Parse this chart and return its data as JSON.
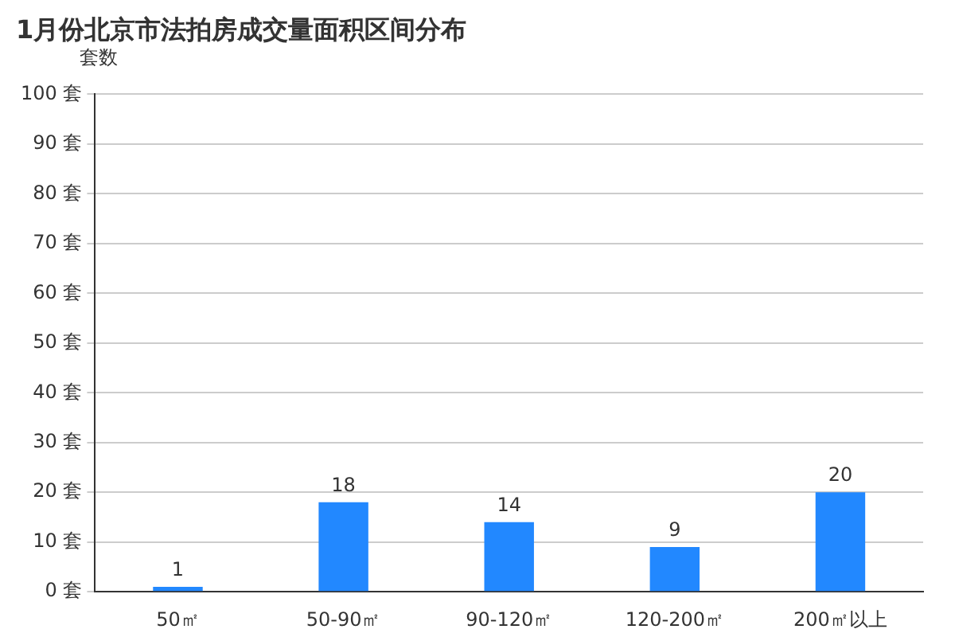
{
  "chart_data": {
    "type": "bar",
    "title": "1月份北京市法拍房成交量面积区间分布",
    "ylabel": "套数",
    "categories": [
      "50㎡",
      "50-90㎡",
      "90-120㎡",
      "120-200㎡",
      "200㎡以上"
    ],
    "values": [
      1,
      18,
      14,
      9,
      20
    ],
    "color": "#2288ff",
    "ylim": [
      0,
      100
    ],
    "yticks": [
      {
        "value": 0,
        "label": "0 套"
      },
      {
        "value": 10,
        "label": "10 套"
      },
      {
        "value": 20,
        "label": "20 套"
      },
      {
        "value": 30,
        "label": "30 套"
      },
      {
        "value": 40,
        "label": "40 套"
      },
      {
        "value": 50,
        "label": "50 套"
      },
      {
        "value": 60,
        "label": "60 套"
      },
      {
        "value": 70,
        "label": "70 套"
      },
      {
        "value": 80,
        "label": "80 套"
      },
      {
        "value": 90,
        "label": "90 套"
      },
      {
        "value": 100,
        "label": "100 套"
      }
    ],
    "grid": "y",
    "data_labels": true,
    "legend": false
  }
}
